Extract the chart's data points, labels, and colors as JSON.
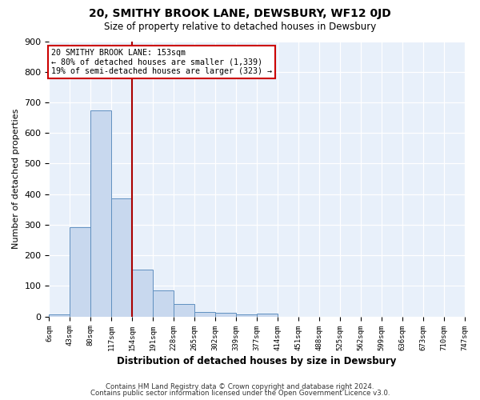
{
  "title": "20, SMITHY BROOK LANE, DEWSBURY, WF12 0JD",
  "subtitle": "Size of property relative to detached houses in Dewsbury",
  "xlabel": "Distribution of detached houses by size in Dewsbury",
  "ylabel": "Number of detached properties",
  "bar_color": "#c8d8ee",
  "bar_edge_color": "#6090c0",
  "background_color": "#e8f0fa",
  "grid_color": "#ffffff",
  "bins": [
    "6sqm",
    "43sqm",
    "80sqm",
    "117sqm",
    "154sqm",
    "191sqm",
    "228sqm",
    "265sqm",
    "302sqm",
    "339sqm",
    "377sqm",
    "414sqm",
    "451sqm",
    "488sqm",
    "525sqm",
    "562sqm",
    "599sqm",
    "636sqm",
    "673sqm",
    "710sqm",
    "747sqm"
  ],
  "values": [
    8,
    293,
    675,
    385,
    152,
    85,
    40,
    14,
    12,
    7,
    10,
    0,
    0,
    0,
    0,
    0,
    0,
    0,
    0,
    0
  ],
  "bin_width": 37,
  "bin_starts": [
    6,
    43,
    80,
    117,
    154,
    191,
    228,
    265,
    302,
    339,
    377,
    414,
    451,
    488,
    525,
    562,
    599,
    636,
    673,
    710
  ],
  "property_line_x": 154,
  "property_line_color": "#aa0000",
  "ylim": [
    0,
    900
  ],
  "yticks": [
    0,
    100,
    200,
    300,
    400,
    500,
    600,
    700,
    800,
    900
  ],
  "annotation_title": "20 SMITHY BROOK LANE: 153sqm",
  "annotation_line1": "← 80% of detached houses are smaller (1,339)",
  "annotation_line2": "19% of semi-detached houses are larger (323) →",
  "annotation_box_color": "#ffffff",
  "annotation_box_edge_color": "#cc0000",
  "footer_line1": "Contains HM Land Registry data © Crown copyright and database right 2024.",
  "footer_line2": "Contains public sector information licensed under the Open Government Licence v3.0."
}
